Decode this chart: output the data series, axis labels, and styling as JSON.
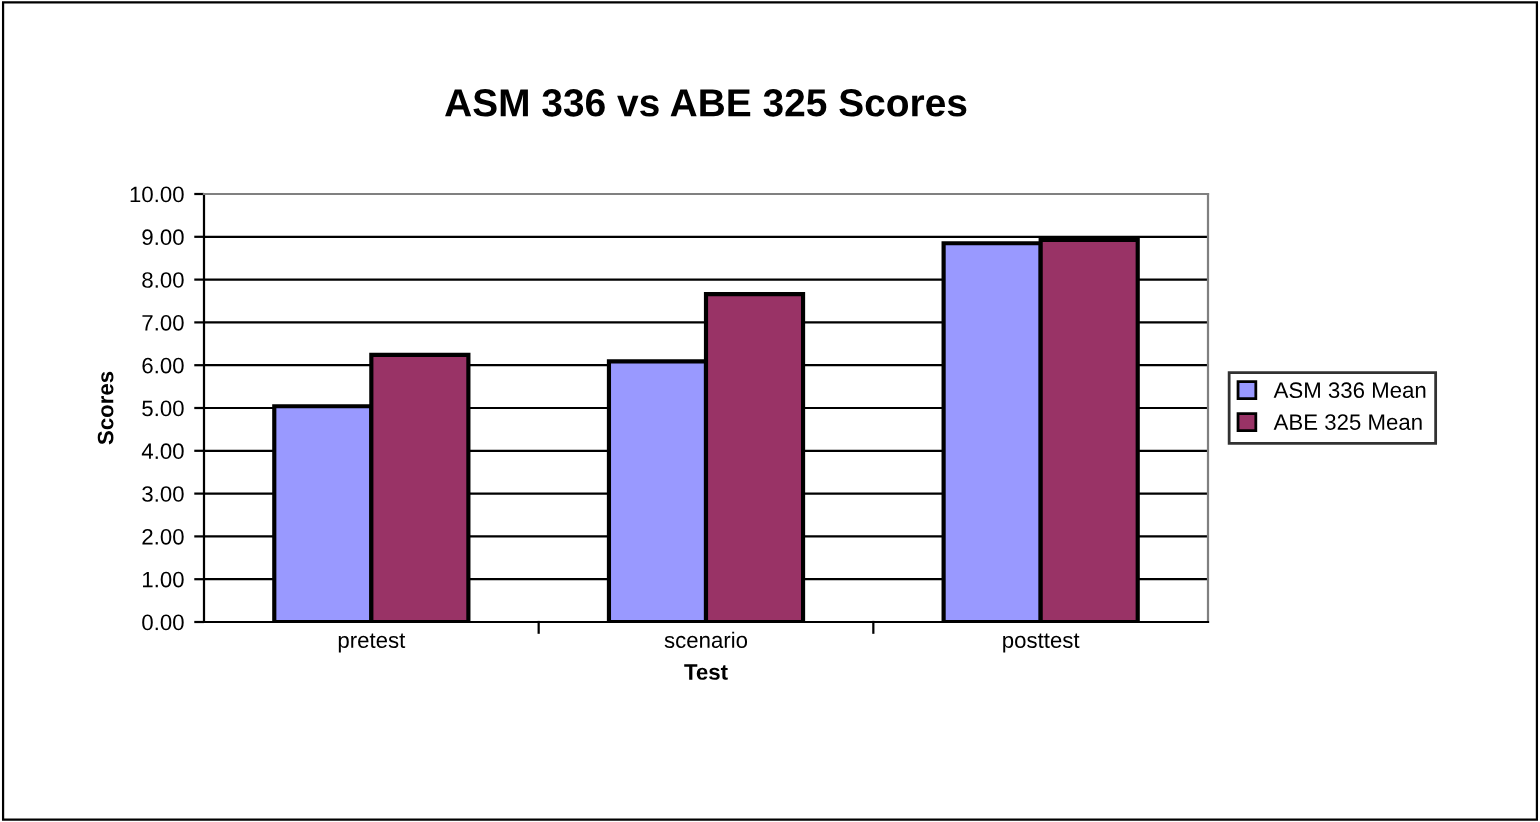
{
  "chart_data": {
    "type": "bar",
    "title": "ASM 336 vs ABE 325 Scores",
    "xlabel": "Test",
    "ylabel": "Scores",
    "categories": [
      "pretest",
      "scenario",
      "posttest"
    ],
    "series": [
      {
        "name": "ASM 336 Mean",
        "color": "#9999ff",
        "values": [
          5.04,
          6.09,
          8.85
        ]
      },
      {
        "name": "ABE 325 Mean",
        "color": "#993366",
        "values": [
          6.24,
          7.66,
          8.93
        ]
      }
    ],
    "ylim": [
      0,
      10
    ],
    "yticks": [
      {
        "value": 0,
        "label": "0.00"
      },
      {
        "value": 1,
        "label": "1.00"
      },
      {
        "value": 2,
        "label": "2.00"
      },
      {
        "value": 3,
        "label": "3.00"
      },
      {
        "value": 4,
        "label": "4.00"
      },
      {
        "value": 5,
        "label": "5.00"
      },
      {
        "value": 6,
        "label": "6.00"
      },
      {
        "value": 7,
        "label": "7.00"
      },
      {
        "value": 8,
        "label": "8.00"
      },
      {
        "value": 9,
        "label": "9.00"
      },
      {
        "value": 10,
        "label": "10.00"
      }
    ],
    "grid": "y",
    "legend": "right"
  }
}
